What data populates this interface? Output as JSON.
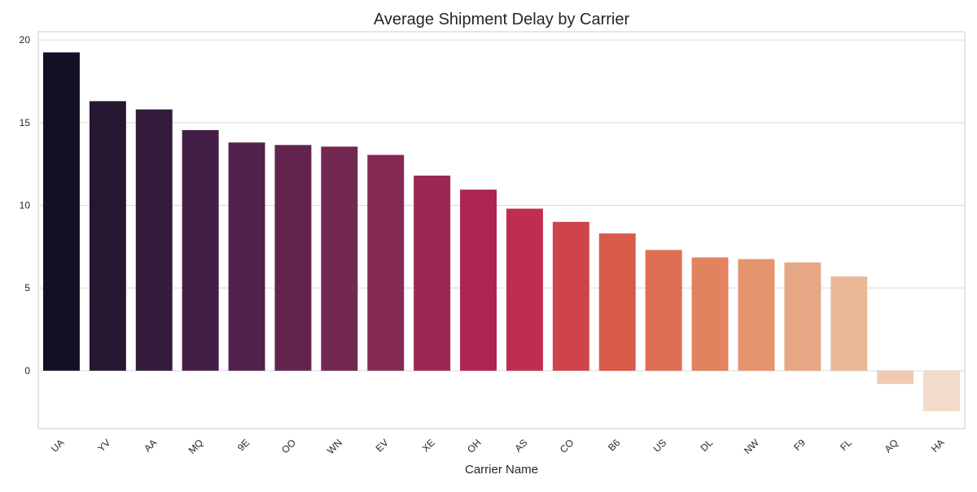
{
  "chart_data": {
    "type": "bar",
    "title": "Average Shipment Delay by Carrier",
    "xlabel": "Carrier Name",
    "ylabel": "",
    "ylim": [
      -3.5,
      20.5
    ],
    "yticks": [
      0,
      5,
      10,
      15,
      20
    ],
    "grid": true,
    "categories": [
      "UA",
      "YV",
      "AA",
      "MQ",
      "9E",
      "OO",
      "WN",
      "EV",
      "XE",
      "OH",
      "AS",
      "CO",
      "B6",
      "US",
      "DL",
      "NW",
      "F9",
      "FL",
      "AQ",
      "HA"
    ],
    "values": [
      19.25,
      16.3,
      15.8,
      14.55,
      13.8,
      13.65,
      13.55,
      13.05,
      11.8,
      10.95,
      9.8,
      9.0,
      8.3,
      7.3,
      6.85,
      6.75,
      6.55,
      5.7,
      -0.8,
      -2.45
    ],
    "colors": [
      "#150f26",
      "#261730",
      "#331b3b",
      "#431e45",
      "#52214c",
      "#62244f",
      "#722851",
      "#842a52",
      "#9b2753",
      "#ad2451",
      "#bf2e4e",
      "#cf434b",
      "#d85a4a",
      "#de6e53",
      "#e2825f",
      "#e5956e",
      "#e6a884",
      "#e9b897",
      "#efcab0",
      "#f2dbcb"
    ],
    "axis_color": "#cccccc",
    "grid_color": "#d9d9d9",
    "text_color": "#262626"
  }
}
